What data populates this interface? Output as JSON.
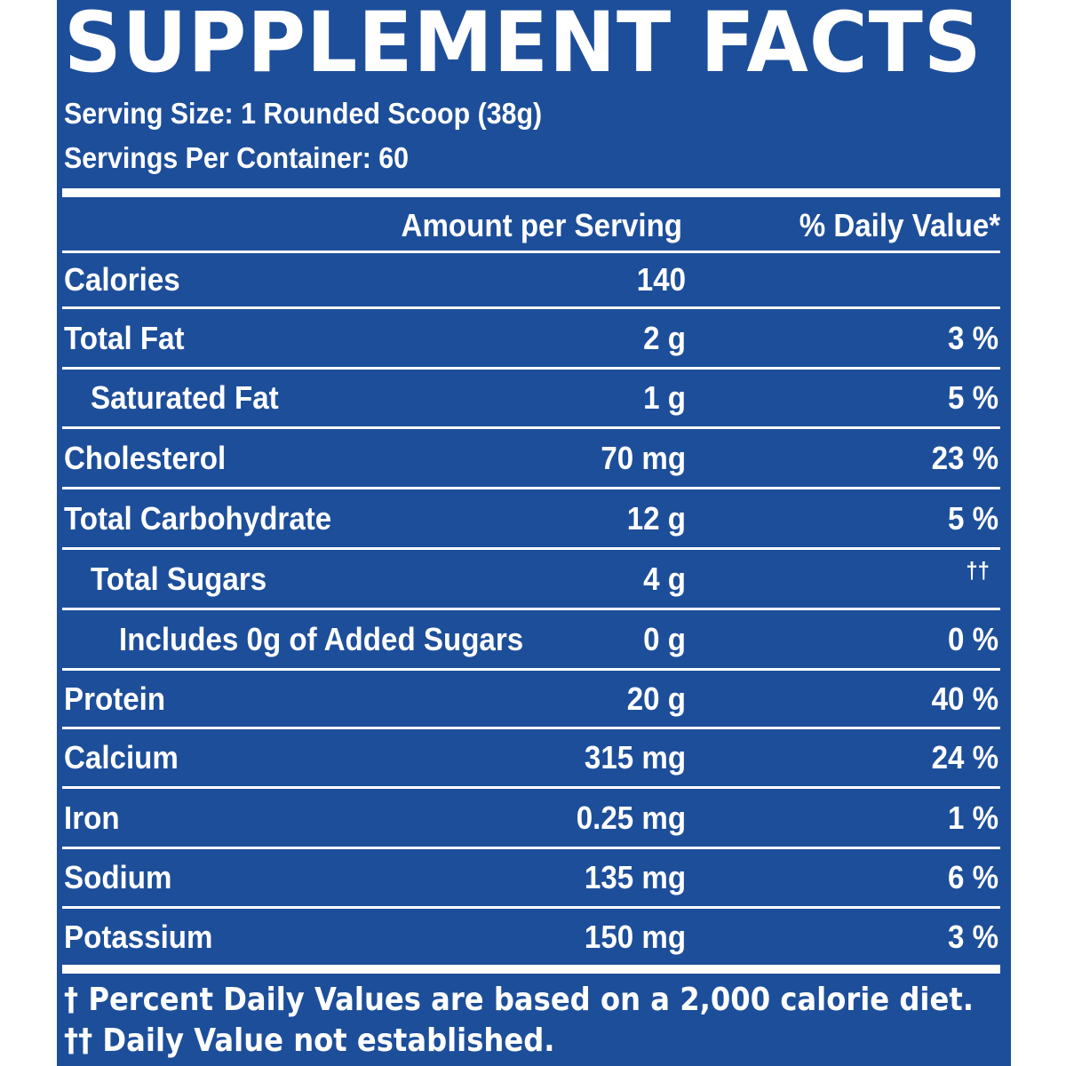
{
  "title": "SUPPLEMENT FACTS",
  "serving_size": "Serving Size: 1 Rounded Scoop (38g)",
  "servings_per_container": "Servings Per Container: 60",
  "header": {
    "amount": "Amount per Serving",
    "daily_value": "% Daily Value*"
  },
  "rows": [
    {
      "name": "Calories",
      "amount": "140",
      "dv": "",
      "indent": 0
    },
    {
      "name": "Total Fat",
      "amount": "2 g",
      "dv": "3 %",
      "indent": 0
    },
    {
      "name": "Saturated Fat",
      "amount": "1 g",
      "dv": "5 %",
      "indent": 1
    },
    {
      "name": "Cholesterol",
      "amount": "70 mg",
      "dv": "23 %",
      "indent": 0
    },
    {
      "name": "Total Carbohydrate",
      "amount": "12 g",
      "dv": "5 %",
      "indent": 0
    },
    {
      "name": "Total Sugars",
      "amount": "4 g",
      "dv": "††",
      "indent": 1
    },
    {
      "name": "Includes 0g of Added Sugars",
      "amount": "0 g",
      "dv": "0 %",
      "indent": 2
    },
    {
      "name": "Protein",
      "amount": "20 g",
      "dv": "40 %",
      "indent": 0
    },
    {
      "name": "Calcium",
      "amount": "315 mg",
      "dv": "24 %",
      "indent": 0
    },
    {
      "name": "Iron",
      "amount": "0.25 mg",
      "dv": "1 %",
      "indent": 0
    },
    {
      "name": "Sodium",
      "amount": "135 mg",
      "dv": "6 %",
      "indent": 0
    },
    {
      "name": "Potassium",
      "amount": "150 mg",
      "dv": "3 %",
      "indent": 0
    }
  ],
  "footnotes": {
    "dagger": "† Percent Daily Values are based on a 2,000 calorie diet.",
    "double_dagger": "†† Daily Value not established."
  },
  "colors": {
    "panel_background": "#1d4e9a",
    "text": "#ffffff",
    "page_background": "#ffffff"
  }
}
